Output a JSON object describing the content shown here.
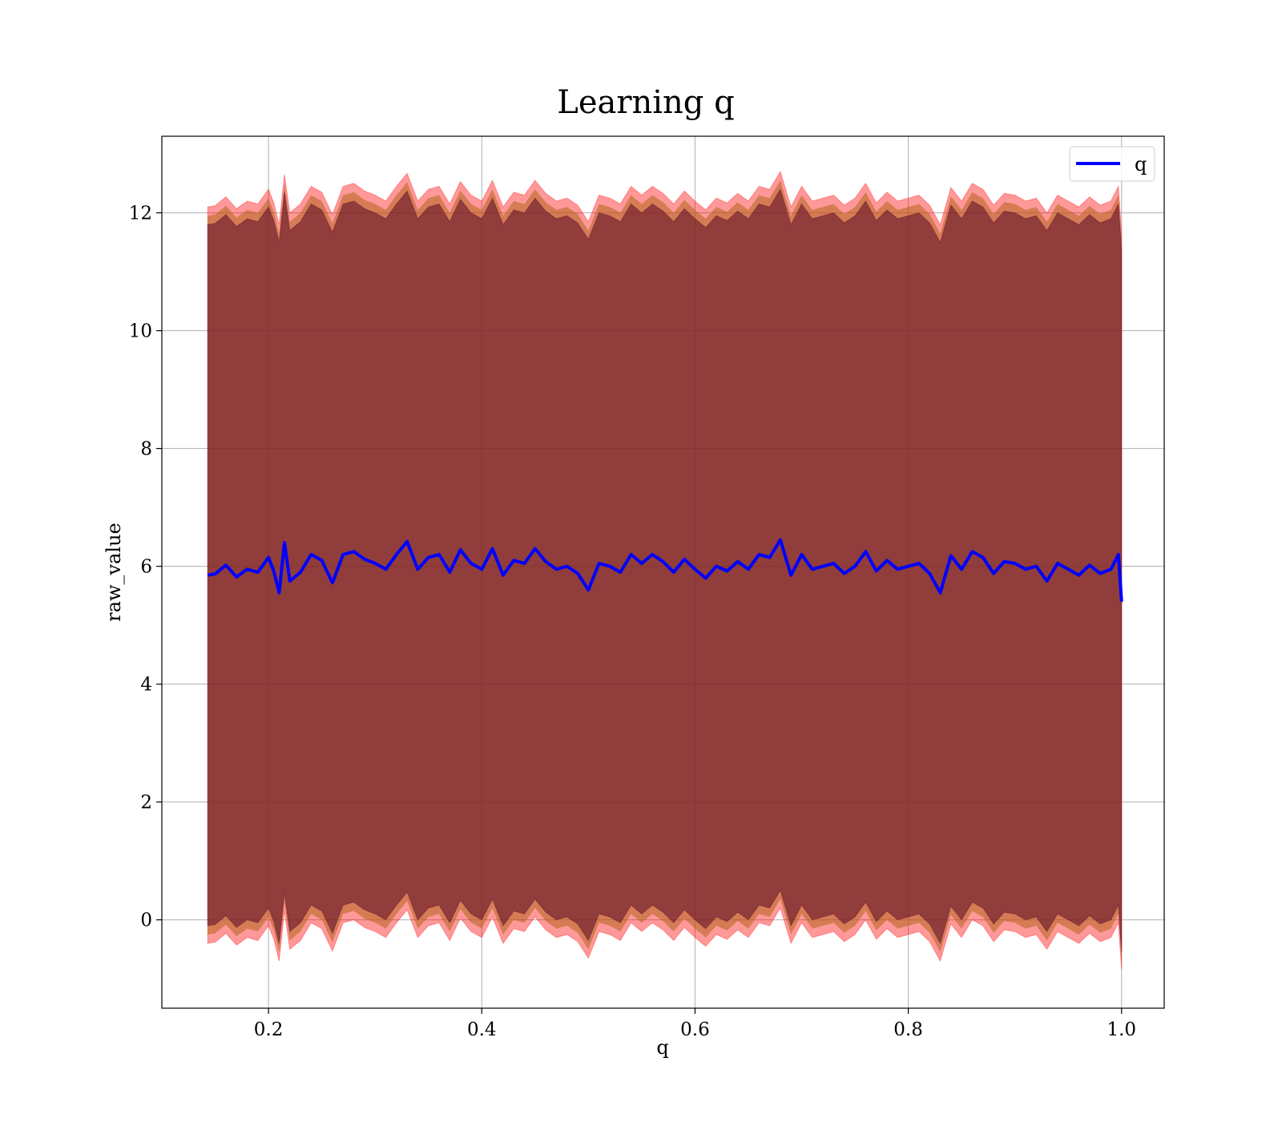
{
  "chart_data": {
    "type": "line",
    "title": "Learning q",
    "xlabel": "q",
    "ylabel": "raw_value",
    "xlim": [
      0.1,
      1.04
    ],
    "ylim": [
      -1.5,
      13.3
    ],
    "x_ticks": [
      0.2,
      0.4,
      0.6,
      0.8,
      1.0
    ],
    "x_tick_labels": [
      "0.2",
      "0.4",
      "0.6",
      "0.8",
      "1.0"
    ],
    "y_ticks": [
      0,
      2,
      4,
      6,
      8,
      10,
      12
    ],
    "y_tick_labels": [
      "0",
      "2",
      "4",
      "6",
      "8",
      "10",
      "12"
    ],
    "grid": true,
    "legend": {
      "position": "top-right",
      "entries": [
        "q"
      ]
    },
    "colors": {
      "line": "#0000ff",
      "outer_band": "#ff0000",
      "middle_band": "#b5651d",
      "inner_band": "#5a0a28"
    },
    "series": [
      {
        "name": "q",
        "x": [
          0.143,
          0.15,
          0.16,
          0.17,
          0.18,
          0.19,
          0.2,
          0.205,
          0.21,
          0.215,
          0.22,
          0.23,
          0.24,
          0.25,
          0.26,
          0.27,
          0.28,
          0.29,
          0.3,
          0.31,
          0.32,
          0.33,
          0.34,
          0.35,
          0.36,
          0.37,
          0.38,
          0.39,
          0.4,
          0.41,
          0.42,
          0.43,
          0.44,
          0.45,
          0.46,
          0.47,
          0.48,
          0.49,
          0.5,
          0.51,
          0.52,
          0.53,
          0.54,
          0.55,
          0.56,
          0.57,
          0.58,
          0.59,
          0.6,
          0.61,
          0.62,
          0.63,
          0.64,
          0.65,
          0.66,
          0.67,
          0.68,
          0.69,
          0.7,
          0.71,
          0.72,
          0.73,
          0.74,
          0.75,
          0.76,
          0.77,
          0.78,
          0.79,
          0.8,
          0.81,
          0.82,
          0.83,
          0.84,
          0.85,
          0.86,
          0.87,
          0.88,
          0.89,
          0.9,
          0.91,
          0.92,
          0.93,
          0.94,
          0.95,
          0.96,
          0.97,
          0.98,
          0.99,
          0.997,
          1.0
        ],
        "values": [
          5.85,
          5.87,
          6.02,
          5.82,
          5.95,
          5.9,
          6.15,
          5.92,
          5.55,
          6.4,
          5.75,
          5.9,
          6.2,
          6.1,
          5.72,
          6.2,
          6.25,
          6.12,
          6.05,
          5.95,
          6.2,
          6.42,
          5.95,
          6.15,
          6.2,
          5.9,
          6.28,
          6.05,
          5.95,
          6.3,
          5.85,
          6.1,
          6.05,
          6.3,
          6.08,
          5.95,
          6.0,
          5.88,
          5.6,
          6.05,
          6.0,
          5.9,
          6.2,
          6.05,
          6.2,
          6.08,
          5.9,
          6.12,
          5.95,
          5.8,
          6.0,
          5.92,
          6.08,
          5.95,
          6.2,
          6.15,
          6.45,
          5.85,
          6.2,
          5.95,
          6.0,
          6.05,
          5.88,
          6.0,
          6.25,
          5.92,
          6.1,
          5.95,
          6.0,
          6.05,
          5.88,
          5.55,
          6.18,
          5.95,
          6.25,
          6.15,
          5.88,
          6.08,
          6.05,
          5.95,
          6.0,
          5.75,
          6.05,
          5.95,
          5.85,
          6.02,
          5.88,
          5.95,
          6.2,
          5.4
        ],
        "band_outer_half_width": 6.25,
        "band_middle_half_width": 6.1,
        "band_inner_half_width": 5.95
      }
    ]
  }
}
